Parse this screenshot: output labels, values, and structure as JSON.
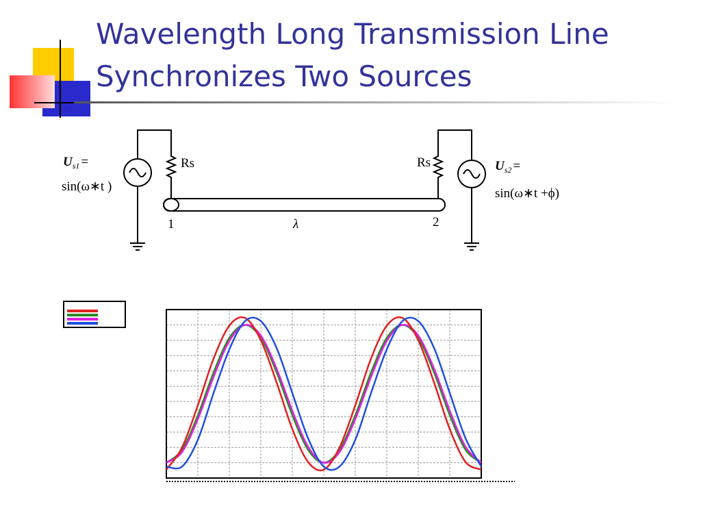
{
  "header": {
    "title_line1": "Wavelength Long Transmission Line",
    "title_line2": "Synchronizes Two Sources"
  },
  "diagram": {
    "source1": {
      "symbol": "U",
      "subscript": "s1",
      "equals": "=",
      "equation": "sin(ω∗t )"
    },
    "source2": {
      "symbol": "U",
      "subscript": "s2",
      "equals": "=",
      "equation": "sin(ω∗t +ϕ)"
    },
    "resistor1": "Rs",
    "resistor2": "Rs",
    "node1": "1",
    "node2": "2",
    "line_label": "λ"
  },
  "chart_data": {
    "type": "line",
    "x": [
      0,
      0.5,
      1,
      1.5,
      2,
      2.5,
      3,
      3.5,
      4,
      4.5,
      5,
      5.5,
      6,
      6.5,
      7,
      7.5,
      8,
      8.5,
      9,
      9.5,
      10
    ],
    "xlim": [
      0,
      10
    ],
    "ylim": [
      -1.1,
      1.1
    ],
    "grid": true,
    "series": [
      {
        "color": "#2a8a2a",
        "values": [
          -0.9,
          -0.73,
          -0.28,
          0.28,
          0.73,
          0.9,
          0.73,
          0.28,
          -0.28,
          -0.73,
          -0.9,
          -0.73,
          -0.28,
          0.28,
          0.73,
          0.9,
          0.73,
          0.28,
          -0.28,
          -0.73,
          -0.9
        ]
      },
      {
        "color": "#e020e0",
        "values": [
          -0.9,
          -0.76,
          -0.33,
          0.22,
          0.69,
          0.9,
          0.76,
          0.33,
          -0.22,
          -0.69,
          -0.9,
          -0.76,
          -0.33,
          0.22,
          0.69,
          0.9,
          0.76,
          0.33,
          -0.22,
          -0.69,
          -0.9
        ]
      },
      {
        "color": "#e02020",
        "values": [
          -0.99,
          -0.7,
          -0.15,
          0.46,
          0.89,
          0.99,
          0.7,
          0.15,
          -0.46,
          -0.89,
          -0.99,
          -0.7,
          -0.15,
          0.46,
          0.89,
          0.99,
          0.7,
          0.15,
          -0.46,
          -0.89,
          -0.99
        ]
      },
      {
        "color": "#1f4fe0",
        "values": [
          -0.95,
          -0.95,
          -0.6,
          0.01,
          0.58,
          0.95,
          0.95,
          0.6,
          0.01,
          -0.58,
          -0.95,
          -0.95,
          -0.6,
          0.01,
          0.58,
          0.95,
          0.95,
          0.6,
          0.01,
          -0.58,
          -0.95
        ]
      }
    ]
  }
}
